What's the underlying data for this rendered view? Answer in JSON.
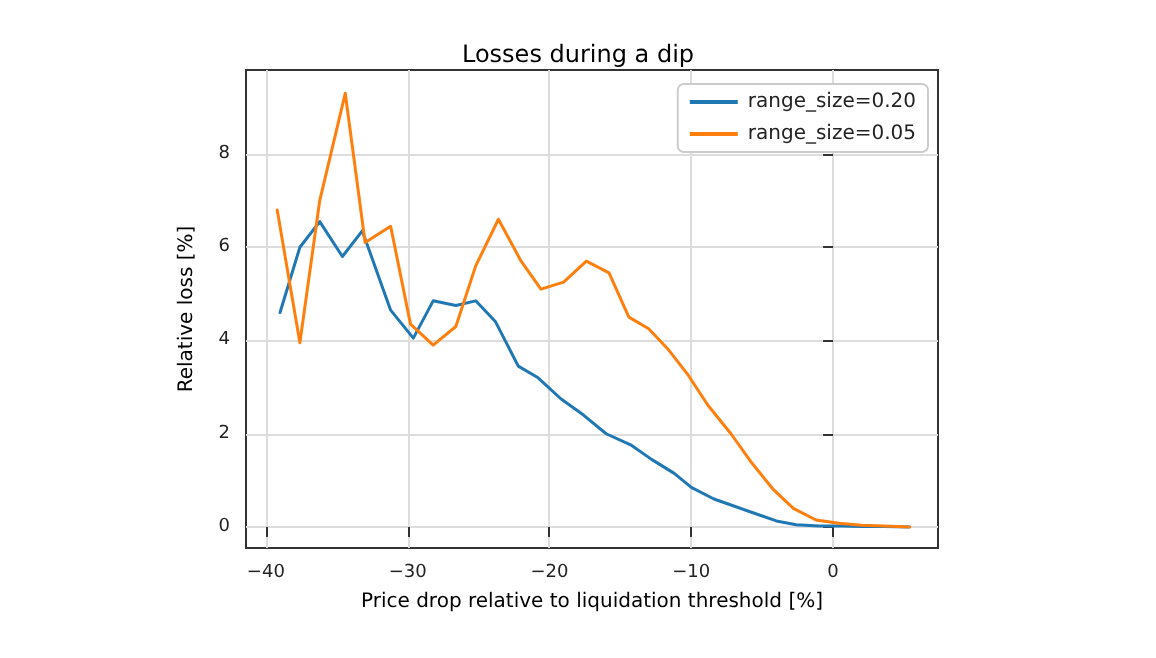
{
  "chart_data": {
    "type": "line",
    "title": "Losses during a dip",
    "xlabel": "Price drop relative to liquidation threshold [%]",
    "ylabel": "Relative loss [%]",
    "xlim": [
      -41.4,
      7.4
    ],
    "xticks": [
      -40,
      -30,
      -20,
      -10,
      0
    ],
    "ylim": [
      -0.45,
      9.8
    ],
    "yticks": [
      0,
      2,
      4,
      6,
      8
    ],
    "grid": true,
    "legend": "top right",
    "marker": "none",
    "series": [
      {
        "name": "range_size=0.20",
        "color": "#1f77b4",
        "x": [
          -39,
          -37.6,
          -36.2,
          -34.6,
          -33.2,
          -31.2,
          -29.6,
          -28.2,
          -26.6,
          -25.2,
          -23.8,
          -22.2,
          -20.8,
          -19.2,
          -17.6,
          -16,
          -14.2,
          -12.8,
          -11.2,
          -10,
          -8.4,
          -7,
          -5.6,
          -4,
          -2.6,
          -1,
          0.6,
          2,
          3.6,
          5.4
        ],
        "values": [
          4.6,
          6.0,
          6.55,
          5.8,
          6.35,
          4.65,
          4.05,
          4.85,
          4.75,
          4.85,
          4.4,
          3.45,
          3.2,
          2.75,
          2.4,
          2.0,
          1.75,
          1.45,
          1.15,
          0.85,
          0.6,
          0.45,
          0.3,
          0.13,
          0.05,
          0.02,
          0.02,
          0.01,
          0.01,
          0
        ]
      },
      {
        "name": "range_size=0.05",
        "color": "#ff7f0e",
        "x": [
          -39.2,
          -37.6,
          -36.2,
          -34.4,
          -33,
          -31.2,
          -29.8,
          -28.2,
          -26.6,
          -25.2,
          -23.6,
          -22,
          -20.6,
          -19,
          -17.4,
          -15.8,
          -14.4,
          -13,
          -11.6,
          -10.2,
          -8.8,
          -7.2,
          -5.8,
          -4.2,
          -2.8,
          -1.2,
          0.4,
          2,
          3.6,
          5.4
        ],
        "values": [
          6.8,
          3.95,
          7.0,
          9.3,
          6.1,
          6.45,
          4.35,
          3.9,
          4.3,
          5.6,
          6.6,
          5.7,
          5.1,
          5.25,
          5.7,
          5.45,
          4.5,
          4.25,
          3.8,
          3.25,
          2.6,
          2.0,
          1.4,
          0.8,
          0.4,
          0.15,
          0.08,
          0.04,
          0.02,
          0
        ]
      }
    ]
  }
}
